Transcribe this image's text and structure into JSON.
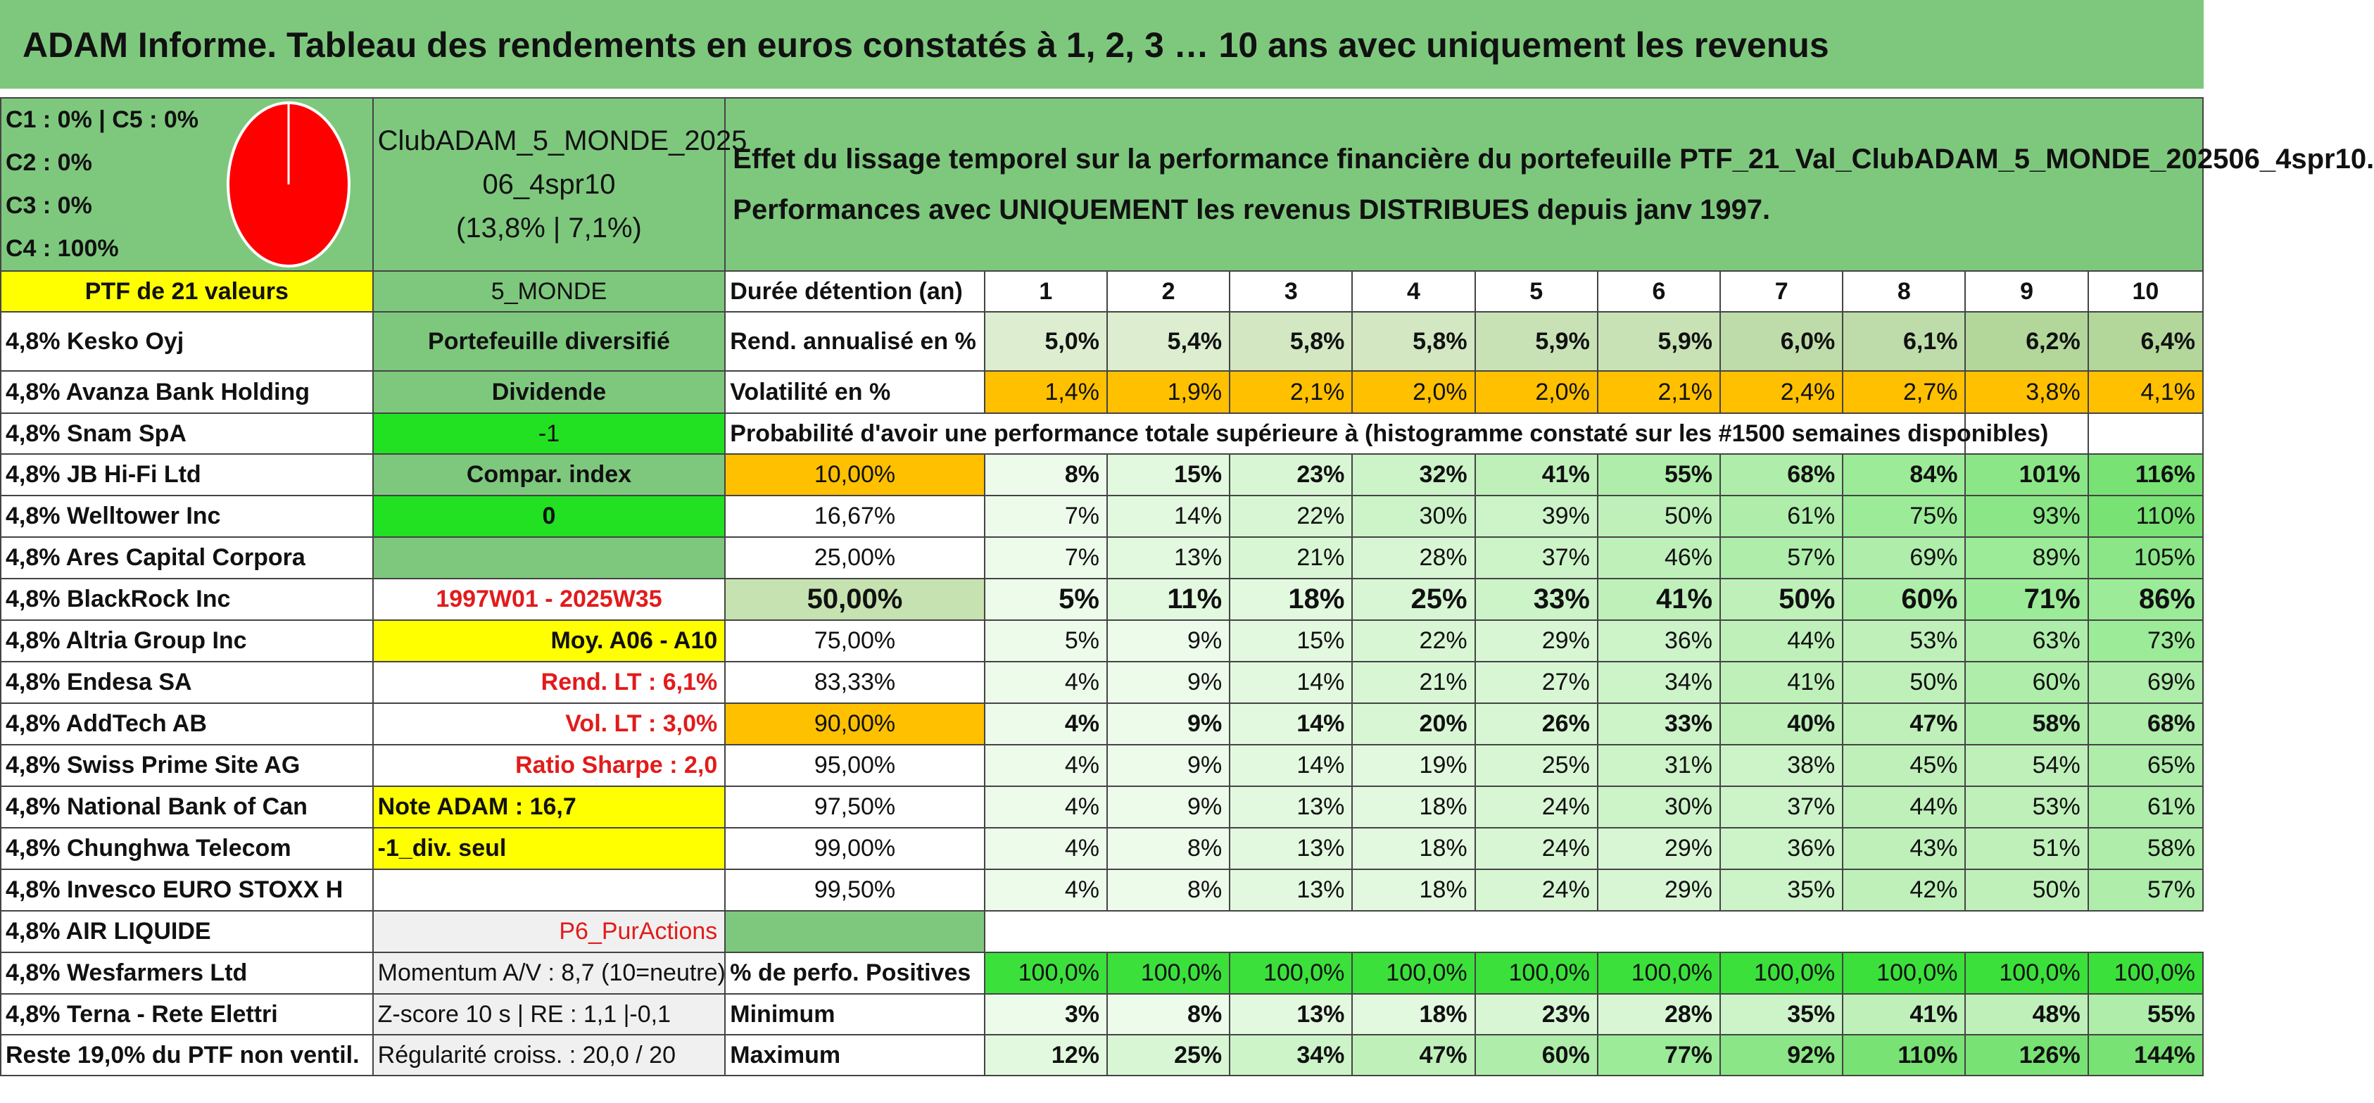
{
  "title": "ADAM Informe. Tableau des rendements en euros constatés à 1, 2, 3 … 10 ans avec uniquement les revenus",
  "colors": {
    "green": "#7ec87e",
    "yellow": "#ffff00",
    "bright_green": "#22e022",
    "orange": "#ffc000",
    "red_text": "#e21b1b",
    "pie_red": "#ff0000"
  },
  "categories": {
    "line1": "C1 : 0% | C5 : 0%",
    "line2": "C2 : 0%",
    "line3": "C3 : 0%",
    "line4": "C4 : 100%"
  },
  "club": {
    "line1": "ClubADAM_5_MONDE_2025",
    "line2": "06_4spr10",
    "line3": "(13,8% | 7,1%)"
  },
  "effect": {
    "line1": "Effet du lissage temporel sur la performance financière du portefeuille PTF_21_Val_ClubADAM_5_MONDE_202506_4spr10.",
    "line2": "Performances avec UNIQUEMENT les revenus DISTRIBUES depuis janv 1997."
  },
  "ptf_label": "PTF de 21 valeurs",
  "region": "5_MONDE",
  "holdings": [
    "4,8% Kesko Oyj",
    "4,8% Avanza Bank Holding",
    "4,8% Snam SpA",
    "4,8% JB Hi-Fi Ltd",
    "4,8% Welltower Inc",
    "4,8% Ares Capital Corpora",
    "4,8% BlackRock Inc",
    "4,8% Altria Group Inc",
    "4,8% Endesa SA",
    "4,8% AddTech AB",
    "4,8% Swiss Prime Site AG",
    "4,8% National Bank of Can",
    "4,8% Chunghwa Telecom",
    "4,8% Invesco EURO STOXX H",
    "4,8% AIR LIQUIDE",
    "4,8% Wesfarmers Ltd",
    "4,8% Terna - Rete Elettri",
    "Reste 19,0% du PTF non ventil."
  ],
  "info": {
    "portefeuille": "Portefeuille diversifié",
    "dividende": "Dividende",
    "minus1": "-1",
    "compar": "Compar. index",
    "zero": "0",
    "period": "1997W01 - 2025W35",
    "moy": "Moy. A06 - A10",
    "rend_lt": "Rend. LT : 6,1%",
    "vol_lt": "Vol. LT : 3,0%",
    "sharpe": "Ratio Sharpe : 2,0",
    "note": "Note ADAM : 16,7",
    "div_seul": "-1_div. seul",
    "p6": "P6_PurActions",
    "momentum": "Momentum A/V : 8,7 (10=neutre)",
    "zscore": "Z-score 10 s | RE : 1,1 |-0,1",
    "regularite": "Régularité croiss. : 20,0 / 20"
  },
  "duree_label": "Durée détention (an)",
  "years": [
    "1",
    "2",
    "3",
    "4",
    "5",
    "6",
    "7",
    "8",
    "9",
    "10"
  ],
  "rend_label": "Rend. annualisé en %",
  "rend": [
    "5,0%",
    "5,4%",
    "5,8%",
    "5,8%",
    "5,9%",
    "5,9%",
    "6,0%",
    "6,1%",
    "6,2%",
    "6,4%"
  ],
  "vol_label": "Volatilité en %",
  "vol": [
    "1,4%",
    "1,9%",
    "2,1%",
    "2,0%",
    "2,0%",
    "2,1%",
    "2,4%",
    "2,7%",
    "3,8%",
    "4,1%"
  ],
  "prob_label": "Probabilité d'avoir une performance totale supérieure à (histogramme constaté sur les #1500 semaines disponibles)",
  "prob_rows": [
    {
      "pct": "10,00%",
      "vals": [
        "8%",
        "15%",
        "23%",
        "32%",
        "41%",
        "55%",
        "68%",
        "84%",
        "101%",
        "116%"
      ]
    },
    {
      "pct": "16,67%",
      "vals": [
        "7%",
        "14%",
        "22%",
        "30%",
        "39%",
        "50%",
        "61%",
        "75%",
        "93%",
        "110%"
      ]
    },
    {
      "pct": "25,00%",
      "vals": [
        "7%",
        "13%",
        "21%",
        "28%",
        "37%",
        "46%",
        "57%",
        "69%",
        "89%",
        "105%"
      ]
    },
    {
      "pct": "50,00%",
      "vals": [
        "5%",
        "11%",
        "18%",
        "25%",
        "33%",
        "41%",
        "50%",
        "60%",
        "71%",
        "86%"
      ]
    },
    {
      "pct": "75,00%",
      "vals": [
        "5%",
        "9%",
        "15%",
        "22%",
        "29%",
        "36%",
        "44%",
        "53%",
        "63%",
        "73%"
      ]
    },
    {
      "pct": "83,33%",
      "vals": [
        "4%",
        "9%",
        "14%",
        "21%",
        "27%",
        "34%",
        "41%",
        "50%",
        "60%",
        "69%"
      ]
    },
    {
      "pct": "90,00%",
      "vals": [
        "4%",
        "9%",
        "14%",
        "20%",
        "26%",
        "33%",
        "40%",
        "47%",
        "58%",
        "68%"
      ]
    },
    {
      "pct": "95,00%",
      "vals": [
        "4%",
        "9%",
        "14%",
        "19%",
        "25%",
        "31%",
        "38%",
        "45%",
        "54%",
        "65%"
      ]
    },
    {
      "pct": "97,50%",
      "vals": [
        "4%",
        "9%",
        "13%",
        "18%",
        "24%",
        "30%",
        "37%",
        "44%",
        "53%",
        "61%"
      ]
    },
    {
      "pct": "99,00%",
      "vals": [
        "4%",
        "8%",
        "13%",
        "18%",
        "24%",
        "29%",
        "36%",
        "43%",
        "51%",
        "58%"
      ]
    },
    {
      "pct": "99,50%",
      "vals": [
        "4%",
        "8%",
        "13%",
        "18%",
        "24%",
        "29%",
        "35%",
        "42%",
        "50%",
        "57%"
      ]
    }
  ],
  "positives_label": "% de perfo. Positives",
  "positives": [
    "100,0%",
    "100,0%",
    "100,0%",
    "100,0%",
    "100,0%",
    "100,0%",
    "100,0%",
    "100,0%",
    "100,0%",
    "100,0%"
  ],
  "min_label": "Minimum",
  "minimum": [
    "3%",
    "8%",
    "13%",
    "18%",
    "23%",
    "28%",
    "35%",
    "41%",
    "48%",
    "55%"
  ],
  "max_label": "Maximum",
  "maximum": [
    "12%",
    "25%",
    "34%",
    "47%",
    "60%",
    "77%",
    "92%",
    "110%",
    "126%",
    "144%"
  ]
}
